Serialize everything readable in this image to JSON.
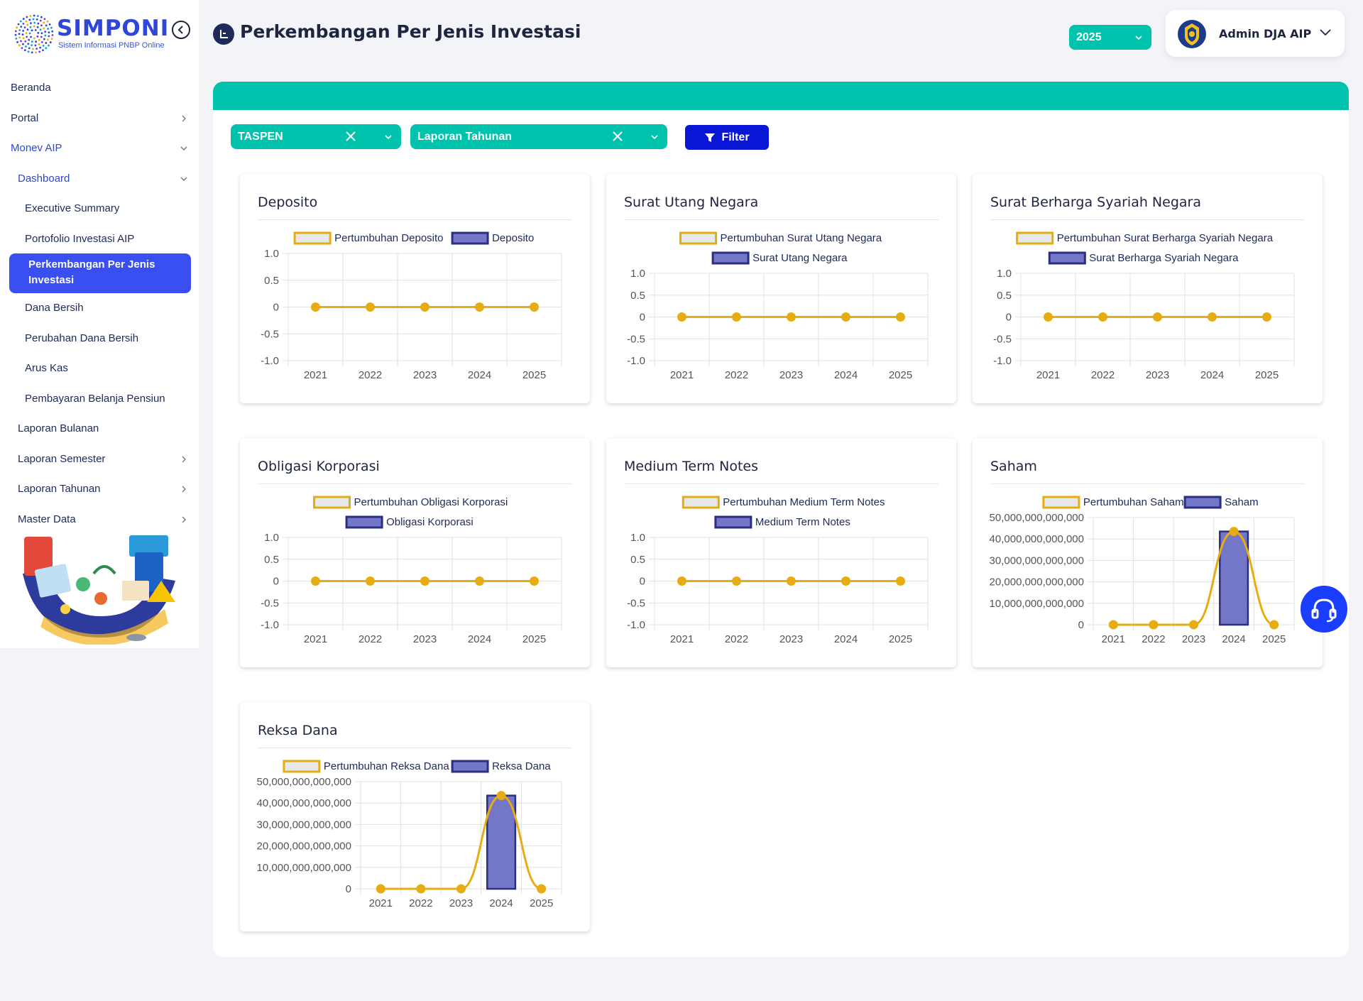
{
  "brand": {
    "name": "SIMPONI",
    "tagline": "Sistem Informasi PNBP Online"
  },
  "header": {
    "title": "Perkembangan Per Jenis Investasi",
    "year": "2025",
    "user_name": "Admin DJA AIP"
  },
  "sidebar": {
    "items": [
      {
        "label": "Beranda"
      },
      {
        "label": "Portal"
      },
      {
        "label": "Monev AIP"
      },
      {
        "label": "Dashboard"
      },
      {
        "label": "Executive Summary"
      },
      {
        "label": "Portofolio Investasi AIP"
      },
      {
        "label": "Perkembangan Per Jenis Investasi"
      },
      {
        "label": "Dana Bersih"
      },
      {
        "label": "Perubahan Dana Bersih"
      },
      {
        "label": "Arus Kas"
      },
      {
        "label": "Pembayaran Belanja Pensiun"
      },
      {
        "label": "Laporan Bulanan"
      },
      {
        "label": "Laporan Semester"
      },
      {
        "label": "Laporan Tahunan"
      },
      {
        "label": "Master Data"
      }
    ]
  },
  "filters": {
    "entity": "TASPEN",
    "report": "Laporan Tahunan",
    "button_label": "Filter"
  },
  "colors": {
    "accent": "#00c3ad",
    "primary": "#3a4ff2",
    "line": "#e6ad12",
    "bar": "#7476c8",
    "bar_border": "#2a2f80"
  },
  "chart_data": [
    {
      "type": "line",
      "title": "Deposito",
      "categories": [
        "2021",
        "2022",
        "2023",
        "2024",
        "2025"
      ],
      "series": [
        {
          "name": "Pertumbuhan Deposito",
          "type": "line",
          "values": [
            0,
            0,
            0,
            0,
            0
          ]
        },
        {
          "name": "Deposito",
          "type": "bar",
          "values": [
            0,
            0,
            0,
            0,
            0
          ]
        }
      ],
      "y_ticks": [
        "1.0",
        "0.5",
        "0",
        "-0.5",
        "-1.0"
      ],
      "ylim": [
        -1,
        1
      ],
      "grid": true,
      "legend_position": "top"
    },
    {
      "type": "line",
      "title": "Surat Utang Negara",
      "categories": [
        "2021",
        "2022",
        "2023",
        "2024",
        "2025"
      ],
      "series": [
        {
          "name": "Pertumbuhan Surat Utang Negara",
          "type": "line",
          "values": [
            0,
            0,
            0,
            0,
            0
          ]
        },
        {
          "name": "Surat Utang Negara",
          "type": "bar",
          "values": [
            0,
            0,
            0,
            0,
            0
          ]
        }
      ],
      "y_ticks": [
        "1.0",
        "0.5",
        "0",
        "-0.5",
        "-1.0"
      ],
      "ylim": [
        -1,
        1
      ],
      "grid": true,
      "legend_position": "top"
    },
    {
      "type": "line",
      "title": "Surat Berharga Syariah Negara",
      "categories": [
        "2021",
        "2022",
        "2023",
        "2024",
        "2025"
      ],
      "series": [
        {
          "name": "Pertumbuhan Surat Berharga Syariah Negara",
          "type": "line",
          "values": [
            0,
            0,
            0,
            0,
            0
          ]
        },
        {
          "name": "Surat Berharga Syariah Negara",
          "type": "bar",
          "values": [
            0,
            0,
            0,
            0,
            0
          ]
        }
      ],
      "y_ticks": [
        "1.0",
        "0.5",
        "0",
        "-0.5",
        "-1.0"
      ],
      "ylim": [
        -1,
        1
      ],
      "grid": true,
      "legend_position": "top"
    },
    {
      "type": "line",
      "title": "Obligasi Korporasi",
      "categories": [
        "2021",
        "2022",
        "2023",
        "2024",
        "2025"
      ],
      "series": [
        {
          "name": "Pertumbuhan Obligasi Korporasi",
          "type": "line",
          "values": [
            0,
            0,
            0,
            0,
            0
          ]
        },
        {
          "name": "Obligasi Korporasi",
          "type": "bar",
          "values": [
            0,
            0,
            0,
            0,
            0
          ]
        }
      ],
      "y_ticks": [
        "1.0",
        "0.5",
        "0",
        "-0.5",
        "-1.0"
      ],
      "ylim": [
        -1,
        1
      ],
      "grid": true,
      "legend_position": "top"
    },
    {
      "type": "line",
      "title": "Medium Term Notes",
      "categories": [
        "2021",
        "2022",
        "2023",
        "2024",
        "2025"
      ],
      "series": [
        {
          "name": "Pertumbuhan Medium Term Notes",
          "type": "line",
          "values": [
            0,
            0,
            0,
            0,
            0
          ]
        },
        {
          "name": "Medium Term Notes",
          "type": "bar",
          "values": [
            0,
            0,
            0,
            0,
            0
          ]
        }
      ],
      "y_ticks": [
        "1.0",
        "0.5",
        "0",
        "-0.5",
        "-1.0"
      ],
      "ylim": [
        -1,
        1
      ],
      "grid": true,
      "legend_position": "top"
    },
    {
      "type": "bar",
      "title": "Saham",
      "categories": [
        "2021",
        "2022",
        "2023",
        "2024",
        "2025"
      ],
      "series": [
        {
          "name": "Pertumbuhan Saham",
          "type": "line",
          "values": [
            0,
            0,
            0,
            43500000000000,
            0
          ]
        },
        {
          "name": "Saham",
          "type": "bar",
          "values": [
            0,
            0,
            0,
            43500000000000,
            0
          ]
        }
      ],
      "y_ticks": [
        "50,000,000,000,000",
        "40,000,000,000,000",
        "30,000,000,000,000",
        "20,000,000,000,000",
        "10,000,000,000,000",
        "0"
      ],
      "ylim": [
        0,
        50000000000000
      ],
      "grid": true,
      "legend_position": "top"
    },
    {
      "type": "bar",
      "title": "Reksa Dana",
      "categories": [
        "2021",
        "2022",
        "2023",
        "2024",
        "2025"
      ],
      "series": [
        {
          "name": "Pertumbuhan Reksa Dana",
          "type": "line",
          "values": [
            0,
            0,
            0,
            43500000000000,
            0
          ]
        },
        {
          "name": "Reksa Dana",
          "type": "bar",
          "values": [
            0,
            0,
            0,
            43500000000000,
            0
          ]
        }
      ],
      "y_ticks": [
        "50,000,000,000,000",
        "40,000,000,000,000",
        "30,000,000,000,000",
        "20,000,000,000,000",
        "10,000,000,000,000",
        "0"
      ],
      "ylim": [
        0,
        50000000000000
      ],
      "grid": true,
      "legend_position": "top"
    }
  ]
}
